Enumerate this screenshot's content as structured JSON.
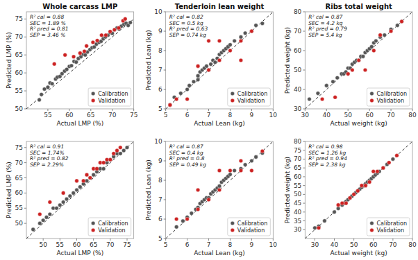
{
  "chart_data": [
    {
      "type": "scatter",
      "title": "Whole carcass LMP",
      "x_label": "Actual LMP (%)",
      "y_label": "Predicted LMP (%)",
      "xlim": [
        50,
        75
      ],
      "ylim": [
        50,
        77
      ],
      "xticks": [
        55,
        60,
        65,
        70,
        75
      ],
      "yticks": [
        50,
        55,
        60,
        65,
        70,
        75
      ],
      "legend": "lower right",
      "annotations": [
        "R² cal = 0.88",
        "SEC = 1.89 %",
        "R² pred = 0.81",
        "SEP = 3.46 %"
      ],
      "reference_line": {
        "x": [
          50,
          75
        ],
        "values": [
          50,
          75
        ],
        "line_style": "dashed"
      },
      "series": [
        {
          "name": "Calibration",
          "color": "#555555",
          "x": [
            53.0,
            53.5,
            54.2,
            55.0,
            55.5,
            56.0,
            56.8,
            57.2,
            57.8,
            58.3,
            58.9,
            59.4,
            60.0,
            60.5,
            61.1,
            61.6,
            62.1,
            62.7,
            63.2,
            63.7,
            64.2,
            64.8,
            65.3,
            65.8,
            66.3,
            66.9,
            67.4,
            67.9,
            68.4,
            69.0,
            69.5,
            70.0,
            70.5,
            71.1,
            71.6,
            72.1,
            72.7,
            73.2,
            73.7,
            74.2
          ],
          "values": [
            52.5,
            54.0,
            55.5,
            56.0,
            57.2,
            57.0,
            58.3,
            58.8,
            59.0,
            59.8,
            60.5,
            61.0,
            61.8,
            62.0,
            63.2,
            63.0,
            64.0,
            64.5,
            65.2,
            65.0,
            65.8,
            66.5,
            67.0,
            67.2,
            68.0,
            68.5,
            68.8,
            69.5,
            70.0,
            70.5,
            71.2,
            71.0,
            72.0,
            72.5,
            72.2,
            73.0,
            73.5,
            73.8,
            73.2,
            74.0
          ]
        },
        {
          "name": "Validation",
          "color": "#cc2222",
          "x": [
            56.5,
            59.0,
            61.0,
            62.5,
            63.5,
            64.0,
            65.5,
            66.5,
            67.5,
            68.5,
            69.5,
            70.5,
            71.5,
            72.5,
            73.0
          ],
          "values": [
            62.5,
            65.0,
            64.5,
            65.5,
            66.0,
            67.5,
            68.5,
            69.0,
            70.5,
            70.5,
            71.5,
            72.0,
            72.5,
            74.5,
            75.0
          ]
        }
      ]
    },
    {
      "type": "scatter",
      "title": "Tenderloin lean weight",
      "x_label": "Actual Lean (kg)",
      "y_label": "Predicted Lean (kg)",
      "xlim": [
        5,
        10
      ],
      "ylim": [
        5,
        10
      ],
      "xticks": [
        5,
        6,
        7,
        8,
        9,
        10
      ],
      "yticks": [
        5,
        6,
        7,
        8,
        9,
        10
      ],
      "legend": "lower right",
      "annotations": [
        "R² cal = 0.82",
        "SEC = 0.5 kg",
        "R² pred = 0.63",
        "SEP = 0.74 kg"
      ],
      "reference_line": {
        "x": [
          5,
          10
        ],
        "values": [
          5,
          10
        ],
        "line_style": "dashed"
      },
      "series": [
        {
          "name": "Calibration",
          "color": "#555555",
          "x": [
            5.2,
            5.4,
            5.7,
            6.0,
            6.1,
            6.3,
            6.5,
            6.5,
            6.6,
            6.7,
            6.8,
            6.9,
            7.0,
            7.1,
            7.2,
            7.3,
            7.4,
            7.5,
            7.6,
            7.7,
            7.8,
            7.9,
            8.0,
            8.2,
            8.5,
            8.7,
            9.0,
            9.2,
            9.5
          ],
          "values": [
            5.2,
            5.6,
            5.8,
            6.0,
            6.2,
            6.4,
            6.5,
            6.7,
            6.9,
            7.0,
            7.1,
            7.2,
            7.0,
            7.3,
            7.5,
            7.4,
            7.6,
            7.8,
            7.9,
            8.0,
            8.1,
            8.2,
            8.3,
            8.5,
            8.7,
            8.9,
            9.0,
            9.3,
            9.4
          ]
        },
        {
          "name": "Validation",
          "color": "#cc2222",
          "x": [
            5.2,
            5.5,
            6.0,
            6.5,
            7.0,
            7.0,
            7.5,
            7.5,
            8.0,
            8.5,
            8.5,
            9.0
          ],
          "values": [
            5.2,
            5.5,
            5.5,
            7.2,
            7.0,
            8.5,
            7.5,
            8.5,
            8.0,
            7.5,
            8.5,
            9.0
          ]
        }
      ]
    },
    {
      "type": "scatter",
      "title": "Ribs total weight",
      "x_label": "Actual weight (kg)",
      "y_label": "Predicted weight (kg)",
      "xlim": [
        30,
        80
      ],
      "ylim": [
        30,
        80
      ],
      "xticks": [
        30,
        40,
        50,
        60,
        70,
        80
      ],
      "yticks": [
        30,
        40,
        50,
        60,
        70,
        80
      ],
      "legend": "lower right",
      "annotations": [
        "R² cal = 0.87",
        "SEC = 4.2 kg",
        "R² pred = 0.79",
        "SEP = 5.4 kg"
      ],
      "reference_line": {
        "x": [
          30,
          80
        ],
        "values": [
          30,
          80
        ],
        "line_style": "dashed"
      },
      "series": [
        {
          "name": "Calibration",
          "color": "#555555",
          "x": [
            32,
            36,
            40,
            43,
            45,
            47,
            48,
            49,
            50,
            51,
            52,
            53,
            54,
            55,
            56,
            57,
            58,
            59,
            60,
            61,
            62,
            63,
            65,
            67,
            70,
            73,
            75
          ],
          "values": [
            35,
            38,
            42,
            44,
            46,
            48,
            48,
            49,
            51,
            51,
            53,
            54,
            55,
            55,
            57,
            57,
            59,
            60,
            61,
            62,
            64,
            65,
            67,
            68,
            71,
            73,
            75
          ]
        },
        {
          "name": "Validation",
          "color": "#cc2222",
          "x": [
            38,
            44,
            50,
            52,
            55,
            58,
            62,
            65,
            70,
            75
          ],
          "values": [
            35,
            36,
            48,
            50,
            55,
            50,
            60,
            68,
            70,
            75
          ]
        }
      ]
    },
    {
      "type": "scatter",
      "x_label": "Actual LMP (%)",
      "y_label": "Predicted LMP (%)",
      "xlim": [
        45,
        77
      ],
      "ylim": [
        45,
        77
      ],
      "xticks": [
        50,
        55,
        60,
        65,
        70,
        75
      ],
      "yticks": [
        50,
        55,
        60,
        65,
        70,
        75
      ],
      "legend": "lower right",
      "annotations": [
        "R² cal = 0.91",
        "SEC = 1.74%",
        "R² pred = 0.82",
        "SEP = 2.29%"
      ],
      "reference_line": {
        "x": [
          45,
          77
        ],
        "values": [
          45,
          77
        ],
        "line_style": "dashed"
      },
      "series": [
        {
          "name": "Calibration",
          "color": "#555555",
          "x": [
            47,
            49,
            50,
            51,
            52,
            53,
            54,
            55,
            56,
            57,
            58,
            59,
            60,
            61,
            62,
            63,
            64,
            65,
            66,
            67,
            68,
            69,
            70,
            71,
            72,
            73,
            74,
            75
          ],
          "values": [
            48,
            50,
            51,
            52,
            53,
            55,
            55,
            56,
            57,
            58,
            59,
            60,
            61,
            62,
            63,
            64,
            65,
            66,
            67,
            68,
            68,
            70,
            71,
            72,
            73,
            73,
            74,
            75
          ]
        },
        {
          "name": "Validation",
          "color": "#cc2222",
          "x": [
            49,
            52,
            56,
            60,
            62,
            63,
            64,
            65,
            66,
            67,
            68,
            69,
            70,
            71,
            72,
            73
          ],
          "values": [
            53,
            57,
            60,
            64,
            64,
            66,
            65,
            68,
            68,
            70,
            70,
            71,
            71,
            73,
            74,
            75
          ]
        }
      ]
    },
    {
      "type": "scatter",
      "x_label": "Actual Lean (kg)",
      "y_label": "Predicted Lean (kg)",
      "xlim": [
        5,
        10
      ],
      "ylim": [
        5,
        10
      ],
      "xticks": [
        5,
        6,
        7,
        8,
        9,
        10
      ],
      "yticks": [
        5,
        6,
        7,
        8,
        9,
        10
      ],
      "legend": "lower right",
      "annotations": [
        "R² cal = 0.87",
        "SEC = 0.4 kg",
        "R² pred = 0.8",
        "SEP = 0.49 kg"
      ],
      "reference_line": {
        "x": [
          5,
          10
        ],
        "values": [
          5,
          10
        ],
        "line_style": "dashed"
      },
      "series": [
        {
          "name": "Calibration",
          "color": "#555555",
          "x": [
            5.5,
            5.8,
            6.0,
            6.2,
            6.4,
            6.5,
            6.6,
            6.7,
            6.8,
            6.9,
            7.0,
            7.1,
            7.2,
            7.3,
            7.4,
            7.5,
            7.6,
            7.7,
            7.8,
            7.9,
            8.0,
            8.2,
            8.5,
            8.7,
            9.0,
            9.2,
            9.5
          ],
          "values": [
            5.6,
            5.9,
            6.1,
            6.3,
            6.5,
            6.6,
            6.8,
            6.9,
            7.0,
            7.1,
            7.1,
            7.3,
            7.4,
            7.5,
            7.6,
            7.7,
            7.9,
            8.0,
            8.1,
            8.2,
            8.3,
            8.5,
            8.6,
            8.8,
            9.0,
            9.2,
            9.4
          ]
        },
        {
          "name": "Validation",
          "color": "#cc2222",
          "x": [
            5.5,
            6.0,
            6.5,
            6.5,
            7.0,
            7.5,
            7.5,
            8.0,
            8.5,
            8.5,
            9.0,
            9.5
          ],
          "values": [
            6.0,
            6.0,
            6.5,
            7.5,
            7.0,
            7.5,
            8.5,
            8.5,
            8.5,
            9.0,
            8.5,
            9.5
          ]
        }
      ]
    },
    {
      "type": "scatter",
      "x_label": "Actual weight (kg)",
      "y_label": "Predicted weight (kg)",
      "xlim": [
        25,
        80
      ],
      "ylim": [
        25,
        80
      ],
      "xticks": [
        30,
        40,
        50,
        60,
        70,
        80
      ],
      "yticks": [
        30,
        35,
        40,
        45,
        50,
        55,
        60,
        65,
        70,
        75,
        80
      ],
      "legend": "lower right",
      "annotations": [
        "R² cal = 0.98",
        "SEC = 1.26 kg",
        "R² pred = 0.94",
        "SEP = 2.38 kg"
      ],
      "reference_line": {
        "x": [
          25,
          80
        ],
        "values": [
          25,
          80
        ],
        "line_style": "dashed"
      },
      "series": [
        {
          "name": "Calibration",
          "color": "#555555",
          "x": [
            30,
            32,
            35,
            40,
            42,
            44,
            45,
            46,
            47,
            48,
            49,
            50,
            51,
            52,
            53,
            54,
            55,
            56,
            57,
            58,
            59,
            60,
            61,
            62,
            63,
            65,
            67,
            70
          ],
          "values": [
            31,
            32,
            35,
            40,
            42,
            44,
            45,
            46,
            47,
            48,
            49,
            50,
            51,
            52,
            53,
            54,
            55,
            56,
            57,
            58,
            59,
            60,
            61,
            62,
            63,
            65,
            67,
            70
          ]
        },
        {
          "name": "Validation",
          "color": "#cc2222",
          "x": [
            32,
            42,
            44,
            46,
            48,
            50,
            52,
            54,
            56,
            58,
            60,
            62,
            65,
            68,
            72
          ],
          "values": [
            31,
            44,
            45,
            45,
            48,
            50,
            52,
            55,
            55,
            57,
            63,
            63,
            65,
            68,
            72
          ]
        }
      ]
    }
  ]
}
